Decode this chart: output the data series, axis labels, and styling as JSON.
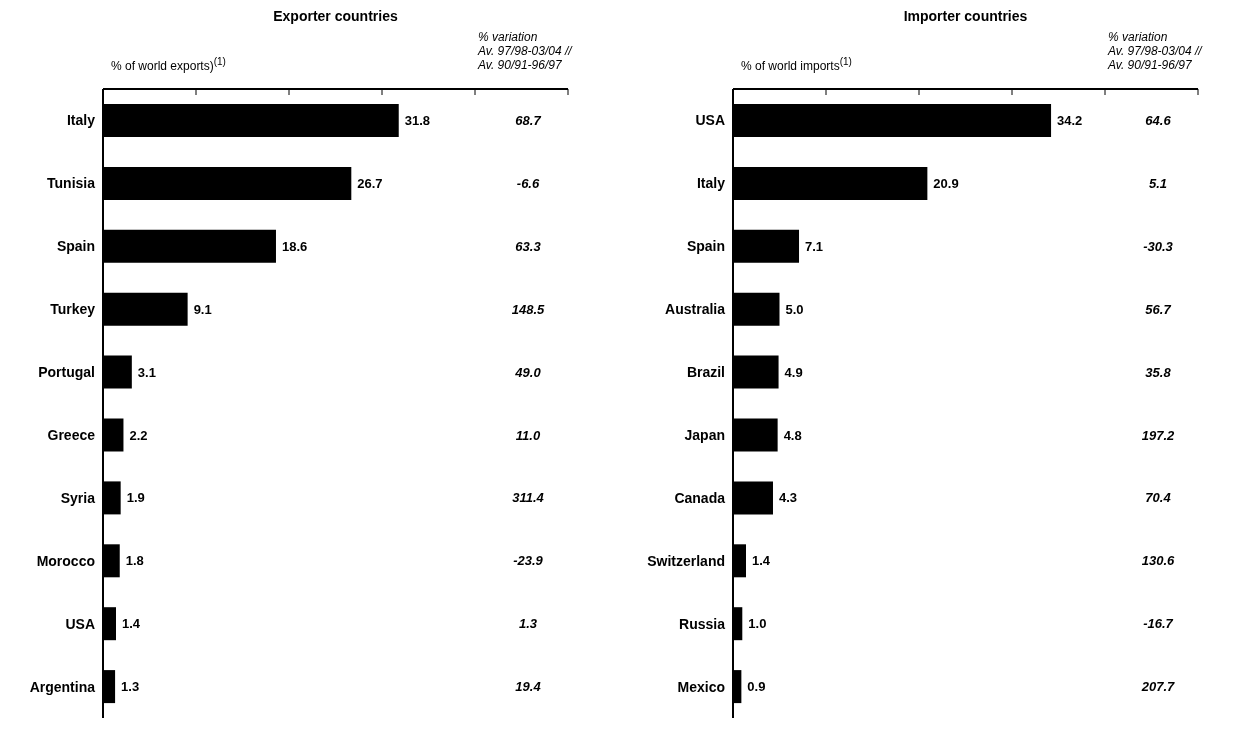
{
  "chart_data": [
    {
      "type": "bar",
      "orientation": "horizontal",
      "title": "Exporter countries",
      "xlabel": "% of world exports)$^{(1)}$",
      "categories": [
        "Italy",
        "Tunisia",
        "Spain",
        "Turkey",
        "Portugal",
        "Greece",
        "Syria",
        "Morocco",
        "USA",
        "Argentina"
      ],
      "values": [
        31.8,
        26.7,
        18.6,
        9.1,
        3.1,
        2.2,
        1.9,
        1.8,
        1.4,
        1.3
      ],
      "value_labels": [
        "31.8",
        "26.7",
        "18.6",
        "9.1",
        "3.1",
        "2.2",
        "1.9",
        "1.8",
        "1.4",
        "1.3"
      ],
      "color": "#000000",
      "xlim": [
        0,
        50
      ],
      "xticks": [
        {
          "value": 0,
          "label": null
        },
        {
          "value": 10,
          "label": null
        },
        {
          "value": 20,
          "label": null
        },
        {
          "value": 30,
          "label": null
        },
        {
          "value": 40,
          "label": null
        },
        {
          "value": 50,
          "label": null
        }
      ],
      "tick_labels": "y",
      "grid": false,
      "legend": false,
      "annotations": [
        "% variation\nAv. 97/98-03/04 //\nAv. 90/91-96/97",
        "68.7",
        "-6.6",
        "63.3",
        "148.5",
        "49.0",
        "11.0",
        "311.4",
        "-23.9",
        "1.3",
        "19.4"
      ]
    },
    {
      "type": "bar",
      "orientation": "horizontal",
      "title": "Importer countries",
      "xlabel": "% of world imports$^{(1)}$",
      "categories": [
        "USA",
        "Italy",
        "Spain",
        "Australia",
        "Brazil",
        "Japan",
        "Canada",
        "Switzerland",
        "Russia",
        "Mexico"
      ],
      "values": [
        34.2,
        20.9,
        7.1,
        5.0,
        4.9,
        4.8,
        4.3,
        1.4,
        1.0,
        0.9
      ],
      "value_labels": [
        "34.2",
        "20.9",
        "7.1",
        "5.0",
        "4.9",
        "4.8",
        "4.3",
        "1.4",
        "1.0",
        "0.9"
      ],
      "color": "#000000",
      "xlim": [
        0,
        50
      ],
      "xticks": [
        {
          "value": 0,
          "label": null
        },
        {
          "value": 10,
          "label": null
        },
        {
          "value": 20,
          "label": null
        },
        {
          "value": 30,
          "label": null
        },
        {
          "value": 40,
          "label": null
        },
        {
          "value": 50,
          "label": null
        }
      ],
      "tick_labels": "y",
      "grid": false,
      "legend": false,
      "annotations": [
        "% variation\nAv. 97/98-03/04 //\nAv. 90/91-96/97",
        "64.6",
        "5.1",
        "-30.3",
        "56.7",
        "35.8",
        "197.2",
        "70.4",
        "130.6",
        "-16.7",
        "207.7"
      ]
    }
  ]
}
